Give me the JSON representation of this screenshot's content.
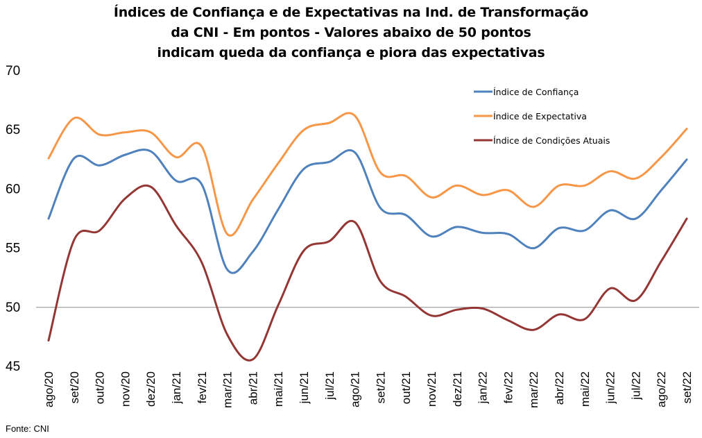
{
  "title": {
    "lines": [
      "Índices de Confiança e de Expectativas na Ind. de Transformação",
      "da CNI - Em pontos - Valores abaixo de 50 pontos",
      "indicam queda da confiança e piora das expectativas"
    ]
  },
  "source": "Fonte: CNI",
  "chart_data": {
    "type": "line",
    "categories": [
      "ago/20",
      "set/20",
      "out/20",
      "nov/20",
      "dez/20",
      "jan/21",
      "fev/21",
      "mar/21",
      "abr/21",
      "mai/21",
      "jun/21",
      "jul/21",
      "ago/21",
      "set/21",
      "out/21",
      "nov/21",
      "dez/21",
      "jan/22",
      "fev/22",
      "mar/22",
      "abr/22",
      "mai/22",
      "jun/22",
      "jul/22",
      "ago/22",
      "set/22"
    ],
    "ylim": [
      45,
      70
    ],
    "yticks": [
      45,
      50,
      55,
      60,
      65,
      70
    ],
    "reference_line": 50,
    "legend_position": "top-right",
    "series": [
      {
        "name": "Índice de Confiança",
        "color": "#4F81BD",
        "values": [
          57.5,
          62.6,
          62.0,
          62.9,
          63.2,
          60.7,
          60.4,
          53.2,
          54.7,
          58.3,
          61.7,
          62.3,
          63.1,
          58.4,
          57.8,
          56.0,
          56.8,
          56.3,
          56.2,
          55.0,
          56.7,
          56.5,
          58.2,
          57.5,
          59.9,
          62.5
        ]
      },
      {
        "name": "Índice de Expectativa",
        "color": "#F79646",
        "values": [
          62.6,
          66.0,
          64.6,
          64.8,
          64.8,
          62.7,
          63.6,
          56.2,
          59.1,
          62.2,
          65.0,
          65.6,
          66.2,
          61.4,
          61.1,
          59.3,
          60.3,
          59.5,
          59.9,
          58.5,
          60.3,
          60.3,
          61.5,
          60.9,
          62.7,
          65.1
        ]
      },
      {
        "name": "Índice de Condições Atuais",
        "color": "#943634",
        "values": [
          47.2,
          55.7,
          56.5,
          59.2,
          60.2,
          56.9,
          53.8,
          47.7,
          45.6,
          50.2,
          54.8,
          55.6,
          57.2,
          52.2,
          50.9,
          49.3,
          49.8,
          49.9,
          48.9,
          48.1,
          49.4,
          49.0,
          51.6,
          50.6,
          53.9,
          57.5
        ]
      }
    ]
  }
}
